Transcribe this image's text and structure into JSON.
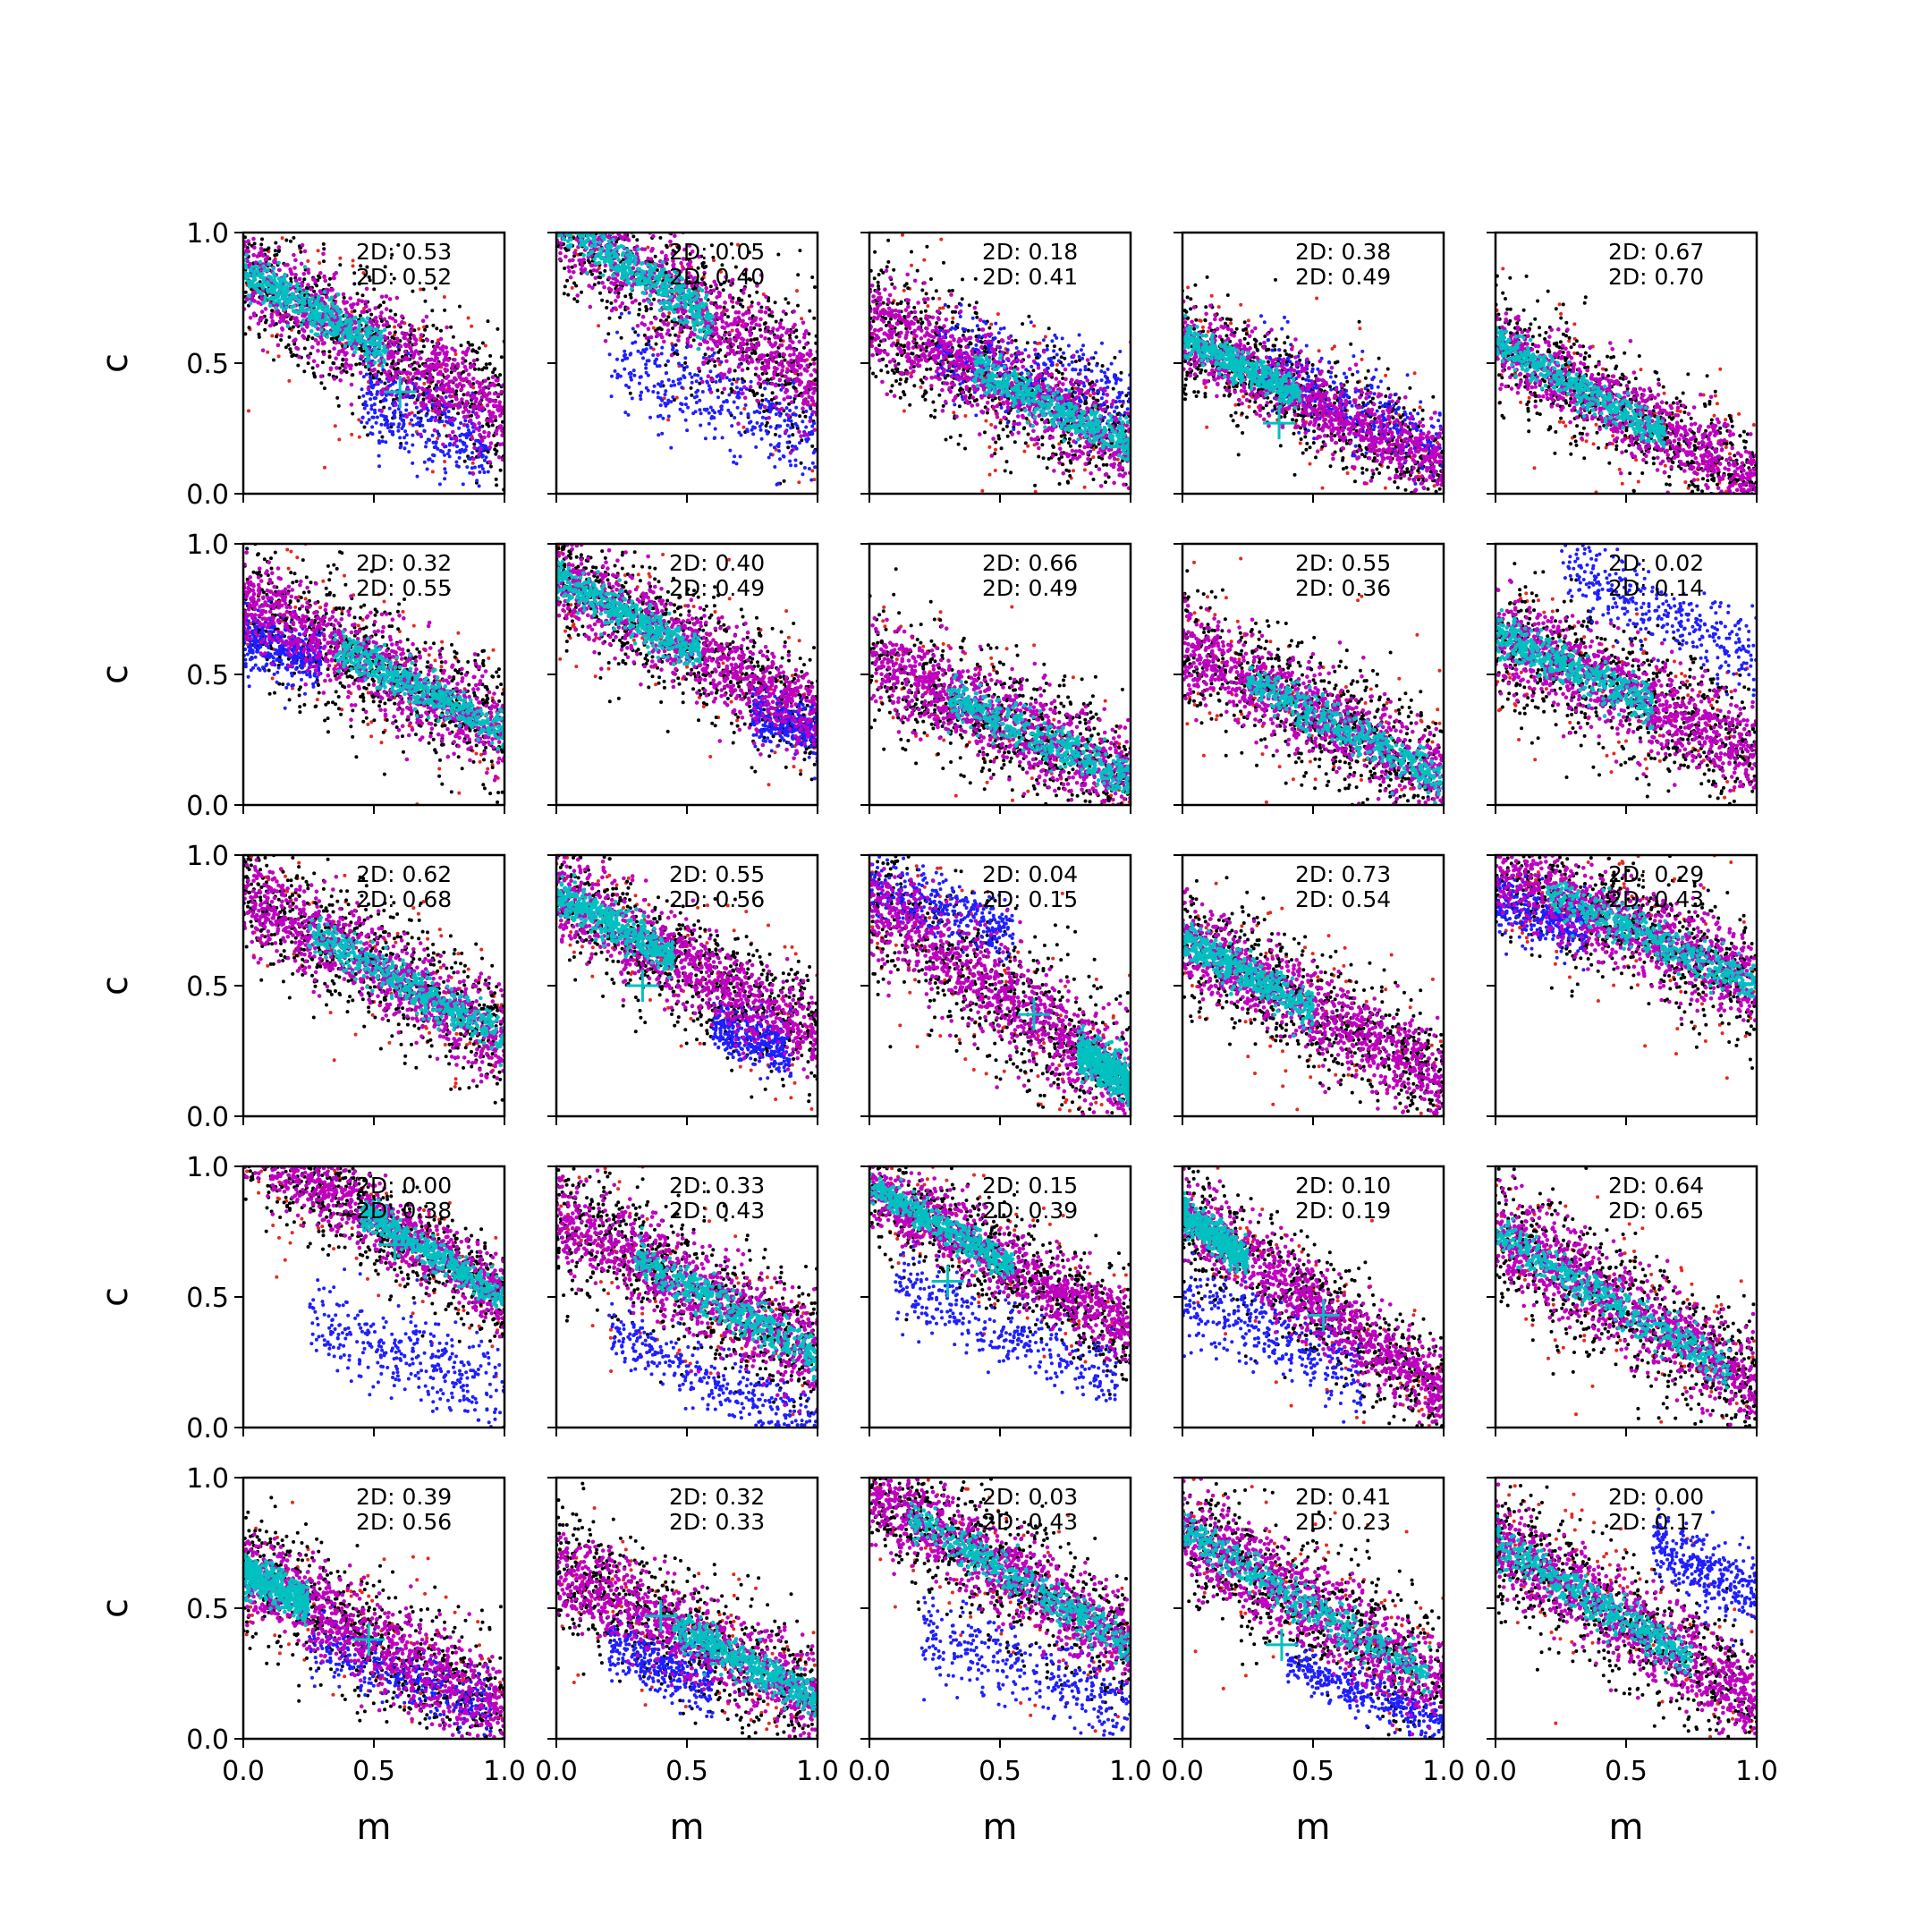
{
  "chart_data": {
    "type": "scatter",
    "layout": "5x5 grid of panels",
    "xlabel": "m",
    "ylabel": "c",
    "xlim": [
      0,
      1
    ],
    "ylim": [
      0,
      1
    ],
    "x_ticks": [
      "0.0",
      "0.5",
      "1.0"
    ],
    "y_ticks": [
      "0.0",
      "0.5",
      "1.0"
    ],
    "grid": false,
    "legend": "none",
    "colors": {
      "black": "#000000",
      "red": "#e8281e",
      "blue": "#1f1fff",
      "magenta": "#c000c0",
      "cyan": "#00c0c0",
      "marker": "#00c0c0"
    },
    "panels": [
      {
        "label1": "2D: 0.53",
        "label2": "2D: 0.52",
        "c0": 0.85,
        "slope": -0.55,
        "w": 0.18,
        "cyanX": [
          0.0,
          0.55
        ],
        "blue": {
          "x0": 0.45,
          "x1": 0.95,
          "c": 0.58,
          "s": -0.45,
          "w": 0.08
        },
        "marker": [
          0.6,
          0.39
        ]
      },
      {
        "label1": "2D: 0.05",
        "label2": "2D: 0.40",
        "c0": 1.05,
        "slope": -0.65,
        "w": 0.2,
        "cyanX": [
          0.0,
          0.6
        ],
        "blue": {
          "x0": 0.2,
          "x1": 1.0,
          "c": 0.6,
          "s": -0.4,
          "w": 0.09
        },
        "marker": null
      },
      {
        "label1": "2D: 0.18",
        "label2": "2D: 0.41",
        "c0": 0.68,
        "slope": -0.5,
        "w": 0.17,
        "cyanX": [
          0.4,
          1.0
        ],
        "blue": {
          "x0": 0.25,
          "x1": 1.0,
          "c": 0.62,
          "s": -0.25,
          "w": 0.08
        },
        "marker": null
      },
      {
        "label1": "2D: 0.38",
        "label2": "2D: 0.49",
        "c0": 0.6,
        "slope": -0.5,
        "w": 0.14,
        "cyanX": [
          0.0,
          0.45
        ],
        "blue": {
          "x0": 0.3,
          "x1": 1.0,
          "c": 0.62,
          "s": -0.45,
          "w": 0.07
        },
        "marker": [
          0.37,
          0.27
        ]
      },
      {
        "label1": "2D: 0.67",
        "label2": "2D: 0.70",
        "c0": 0.58,
        "slope": -0.55,
        "w": 0.15,
        "cyanX": [
          0.0,
          0.65
        ],
        "blue": null,
        "marker": null
      },
      {
        "label1": "2D: 0.32",
        "label2": "2D: 0.55",
        "c0": 0.78,
        "slope": -0.5,
        "w": 0.17,
        "cyanX": [
          0.35,
          1.0
        ],
        "blue": {
          "x0": 0.0,
          "x1": 0.3,
          "c": 0.65,
          "s": -0.35,
          "w": 0.06
        },
        "marker": null
      },
      {
        "label1": "2D: 0.40",
        "label2": "2D: 0.49",
        "c0": 0.88,
        "slope": -0.55,
        "w": 0.17,
        "cyanX": [
          0.0,
          0.55
        ],
        "blue": {
          "x0": 0.75,
          "x1": 1.0,
          "c": 0.58,
          "s": -0.3,
          "w": 0.05
        },
        "marker": null
      },
      {
        "label1": "2D: 0.66",
        "label2": "2D: 0.49",
        "c0": 0.55,
        "slope": -0.45,
        "w": 0.17,
        "cyanX": [
          0.3,
          1.0
        ],
        "blue": null,
        "marker": null
      },
      {
        "label1": "2D: 0.55",
        "label2": "2D: 0.36",
        "c0": 0.6,
        "slope": -0.5,
        "w": 0.17,
        "cyanX": [
          0.25,
          1.0
        ],
        "blue": null,
        "marker": null
      },
      {
        "label1": "2D: 0.02",
        "label2": "2D: 0.14",
        "c0": 0.65,
        "slope": -0.45,
        "w": 0.18,
        "cyanX": [
          0.0,
          0.6
        ],
        "blue": {
          "x0": 0.25,
          "x1": 1.0,
          "c": 1.05,
          "s": -0.5,
          "w": 0.07
        },
        "marker": null
      },
      {
        "label1": "2D: 0.62",
        "label2": "2D: 0.68",
        "c0": 0.85,
        "slope": -0.55,
        "w": 0.17,
        "cyanX": [
          0.25,
          1.0
        ],
        "blue": null,
        "marker": null
      },
      {
        "label1": "2D: 0.55",
        "label2": "2D: 0.56",
        "c0": 0.85,
        "slope": -0.55,
        "w": 0.16,
        "cyanX": [
          0.0,
          0.45
        ],
        "blue": {
          "x0": 0.6,
          "x1": 0.9,
          "c": 0.6,
          "s": -0.4,
          "w": 0.05
        },
        "marker": [
          0.33,
          0.5
        ]
      },
      {
        "label1": "2D: 0.04",
        "label2": "2D: 0.15",
        "c0": 0.82,
        "slope": -0.7,
        "w": 0.2,
        "cyanX": [
          0.8,
          1.0
        ],
        "blue": {
          "x0": 0.0,
          "x1": 0.55,
          "c": 0.88,
          "s": -0.3,
          "w": 0.06
        },
        "marker": [
          0.63,
          0.39
        ]
      },
      {
        "label1": "2D: 0.73",
        "label2": "2D: 0.54",
        "c0": 0.68,
        "slope": -0.55,
        "w": 0.16,
        "cyanX": [
          0.0,
          0.5
        ],
        "blue": null,
        "marker": null
      },
      {
        "label1": "2D: 0.29",
        "label2": "2D: 0.43",
        "c0": 0.95,
        "slope": -0.45,
        "w": 0.17,
        "cyanX": [
          0.2,
          1.0
        ],
        "blue": {
          "x0": 0.0,
          "x1": 0.35,
          "c": 0.82,
          "s": -0.3,
          "w": 0.06
        },
        "marker": null
      },
      {
        "label1": "2D: 0.00",
        "label2": "2D: 0.38",
        "c0": 1.1,
        "slope": -0.6,
        "w": 0.14,
        "cyanX": [
          0.45,
          1.0
        ],
        "blue": {
          "x0": 0.25,
          "x1": 1.0,
          "c": 0.52,
          "s": -0.4,
          "w": 0.09
        },
        "marker": [
          0.58,
          0.7
        ]
      },
      {
        "label1": "2D: 0.33",
        "label2": "2D: 0.43",
        "c0": 0.82,
        "slope": -0.55,
        "w": 0.18,
        "cyanX": [
          0.3,
          1.0
        ],
        "blue": {
          "x0": 0.2,
          "x1": 1.0,
          "c": 0.45,
          "s": -0.45,
          "w": 0.06
        },
        "marker": null
      },
      {
        "label1": "2D: 0.15",
        "label2": "2D: 0.39",
        "c0": 0.92,
        "slope": -0.55,
        "w": 0.14,
        "cyanX": [
          0.0,
          0.55
        ],
        "blue": {
          "x0": 0.1,
          "x1": 0.95,
          "c": 0.6,
          "s": -0.45,
          "w": 0.07
        },
        "marker": [
          0.3,
          0.56
        ]
      },
      {
        "label1": "2D: 0.10",
        "label2": "2D: 0.19",
        "c0": 0.82,
        "slope": -0.7,
        "w": 0.15,
        "cyanX": [
          0.0,
          0.25
        ],
        "blue": {
          "x0": 0.0,
          "x1": 0.7,
          "c": 0.5,
          "s": -0.45,
          "w": 0.08
        },
        "marker": [
          0.54,
          0.43
        ]
      },
      {
        "label1": "2D: 0.64",
        "label2": "2D: 0.65",
        "c0": 0.75,
        "slope": -0.6,
        "w": 0.18,
        "cyanX": [
          0.0,
          0.9
        ],
        "blue": null,
        "marker": null
      },
      {
        "label1": "2D: 0.39",
        "label2": "2D: 0.56",
        "c0": 0.65,
        "slope": -0.55,
        "w": 0.17,
        "cyanX": [
          0.0,
          0.25
        ],
        "blue": {
          "x0": 0.25,
          "x1": 0.95,
          "c": 0.48,
          "s": -0.4,
          "w": 0.06
        },
        "marker": [
          0.48,
          0.38
        ]
      },
      {
        "label1": "2D: 0.32",
        "label2": "2D: 0.33",
        "c0": 0.65,
        "slope": -0.5,
        "w": 0.17,
        "cyanX": [
          0.45,
          1.0
        ],
        "blue": {
          "x0": 0.2,
          "x1": 0.6,
          "c": 0.45,
          "s": -0.4,
          "w": 0.06
        },
        "marker": [
          0.4,
          0.47
        ]
      },
      {
        "label1": "2D: 0.03",
        "label2": "2D: 0.43",
        "c0": 0.95,
        "slope": -0.6,
        "w": 0.17,
        "cyanX": [
          0.15,
          1.0
        ],
        "blue": {
          "x0": 0.2,
          "x1": 1.0,
          "c": 0.5,
          "s": -0.4,
          "w": 0.08
        },
        "marker": null
      },
      {
        "label1": "2D: 0.41",
        "label2": "2D: 0.23",
        "c0": 0.8,
        "slope": -0.6,
        "w": 0.18,
        "cyanX": [
          0.0,
          0.95
        ],
        "blue": {
          "x0": 0.4,
          "x1": 1.0,
          "c": 0.45,
          "s": -0.4,
          "w": 0.04
        },
        "marker": [
          0.38,
          0.36
        ]
      },
      {
        "label1": "2D: 0.00",
        "label2": "2D: 0.17",
        "c0": 0.75,
        "slope": -0.6,
        "w": 0.17,
        "cyanX": [
          0.0,
          0.75
        ],
        "blue": {
          "x0": 0.6,
          "x1": 1.0,
          "c": 1.05,
          "s": -0.5,
          "w": 0.07
        },
        "marker": null
      }
    ]
  }
}
